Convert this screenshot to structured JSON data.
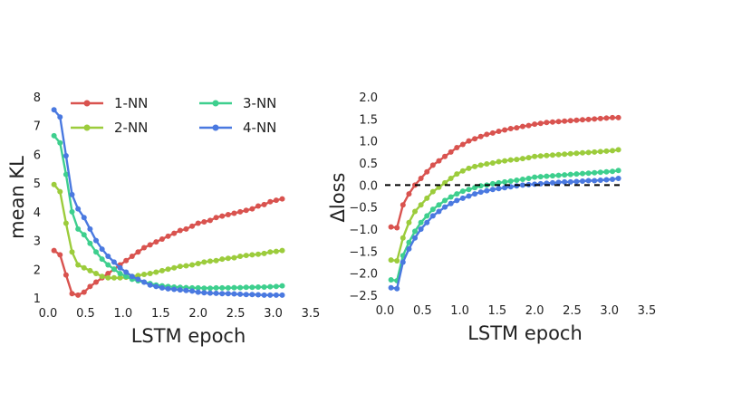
{
  "chart_data": [
    {
      "type": "line",
      "xlabel": "LSTM epoch",
      "ylabel": "mean KL",
      "xlim": [
        0.0,
        3.5
      ],
      "ylim": [
        1,
        8
      ],
      "xticks": [
        "0.0",
        "0.5",
        "1.0",
        "1.5",
        "2.0",
        "2.5",
        "3.0",
        "3.5"
      ],
      "yticks": [
        "1",
        "2",
        "3",
        "4",
        "5",
        "6",
        "7",
        "8"
      ],
      "grid": false,
      "legend": "top (2 columns)",
      "series": [
        {
          "name": "1-NN",
          "color": "#d9534f",
          "x": [
            0.08,
            0.16,
            0.24,
            0.32,
            0.4,
            0.48,
            0.56,
            0.64,
            0.72,
            0.8,
            0.88,
            0.96,
            1.04,
            1.12,
            1.2,
            1.28,
            1.36,
            1.44,
            1.52,
            1.6,
            1.68,
            1.76,
            1.84,
            1.92,
            2.0,
            2.08,
            2.16,
            2.24,
            2.32,
            2.4,
            2.48,
            2.56,
            2.64,
            2.72,
            2.8,
            2.88,
            2.96,
            3.04,
            3.12
          ],
          "values": [
            2.65,
            2.5,
            1.8,
            1.15,
            1.1,
            1.2,
            1.4,
            1.55,
            1.7,
            1.85,
            2.0,
            2.15,
            2.3,
            2.45,
            2.6,
            2.75,
            2.85,
            2.95,
            3.05,
            3.15,
            3.25,
            3.35,
            3.4,
            3.5,
            3.6,
            3.65,
            3.7,
            3.8,
            3.85,
            3.9,
            3.95,
            4.0,
            4.05,
            4.1,
            4.2,
            4.25,
            4.35,
            4.4,
            4.45
          ]
        },
        {
          "name": "2-NN",
          "color": "#9ccc3c",
          "x": [
            0.08,
            0.16,
            0.24,
            0.32,
            0.4,
            0.48,
            0.56,
            0.64,
            0.72,
            0.8,
            0.88,
            0.96,
            1.04,
            1.12,
            1.2,
            1.28,
            1.36,
            1.44,
            1.52,
            1.6,
            1.68,
            1.76,
            1.84,
            1.92,
            2.0,
            2.08,
            2.16,
            2.24,
            2.32,
            2.4,
            2.48,
            2.56,
            2.64,
            2.72,
            2.8,
            2.88,
            2.96,
            3.04,
            3.12
          ],
          "values": [
            4.95,
            4.7,
            3.6,
            2.6,
            2.15,
            2.05,
            1.95,
            1.85,
            1.75,
            1.7,
            1.7,
            1.7,
            1.72,
            1.75,
            1.78,
            1.82,
            1.85,
            1.9,
            1.95,
            2.0,
            2.05,
            2.1,
            2.12,
            2.15,
            2.2,
            2.25,
            2.28,
            2.3,
            2.35,
            2.38,
            2.4,
            2.45,
            2.48,
            2.5,
            2.52,
            2.55,
            2.6,
            2.62,
            2.65
          ]
        },
        {
          "name": "3-NN",
          "color": "#3ecf8e",
          "x": [
            0.08,
            0.16,
            0.24,
            0.32,
            0.4,
            0.48,
            0.56,
            0.64,
            0.72,
            0.8,
            0.88,
            0.96,
            1.04,
            1.12,
            1.2,
            1.28,
            1.36,
            1.44,
            1.52,
            1.6,
            1.68,
            1.76,
            1.84,
            1.92,
            2.0,
            2.08,
            2.16,
            2.24,
            2.32,
            2.4,
            2.48,
            2.56,
            2.64,
            2.72,
            2.8,
            2.88,
            2.96,
            3.04,
            3.12
          ],
          "values": [
            6.65,
            6.4,
            5.3,
            4.0,
            3.4,
            3.2,
            2.9,
            2.6,
            2.35,
            2.15,
            2.0,
            1.85,
            1.75,
            1.65,
            1.6,
            1.55,
            1.5,
            1.45,
            1.42,
            1.4,
            1.38,
            1.37,
            1.36,
            1.35,
            1.35,
            1.34,
            1.34,
            1.35,
            1.35,
            1.35,
            1.36,
            1.36,
            1.37,
            1.37,
            1.38,
            1.38,
            1.39,
            1.4,
            1.42
          ]
        },
        {
          "name": "4-NN",
          "color": "#4a79e0",
          "x": [
            0.08,
            0.16,
            0.24,
            0.32,
            0.4,
            0.48,
            0.56,
            0.64,
            0.72,
            0.8,
            0.88,
            0.96,
            1.04,
            1.12,
            1.2,
            1.28,
            1.36,
            1.44,
            1.52,
            1.6,
            1.68,
            1.76,
            1.84,
            1.92,
            2.0,
            2.08,
            2.16,
            2.24,
            2.32,
            2.4,
            2.48,
            2.56,
            2.64,
            2.72,
            2.8,
            2.88,
            2.96,
            3.04,
            3.12
          ],
          "values": [
            7.55,
            7.3,
            5.95,
            4.6,
            4.1,
            3.8,
            3.4,
            3.0,
            2.7,
            2.45,
            2.25,
            2.05,
            1.9,
            1.75,
            1.65,
            1.55,
            1.45,
            1.4,
            1.35,
            1.32,
            1.3,
            1.28,
            1.26,
            1.24,
            1.2,
            1.18,
            1.17,
            1.16,
            1.15,
            1.15,
            1.14,
            1.13,
            1.12,
            1.12,
            1.11,
            1.1,
            1.1,
            1.1,
            1.1
          ]
        }
      ]
    },
    {
      "type": "line",
      "xlabel": "LSTM epoch",
      "ylabel": "Δloss",
      "xlim": [
        0.0,
        3.5
      ],
      "ylim": [
        -2.5,
        2.0
      ],
      "xticks": [
        "0.0",
        "0.5",
        "1.0",
        "1.5",
        "2.0",
        "2.5",
        "3.0",
        "3.5"
      ],
      "yticks": [
        "−2.5",
        "−2.0",
        "−1.5",
        "−1.0",
        "−0.5",
        "0.0",
        "0.5",
        "1.0",
        "1.5",
        "2.0"
      ],
      "grid": false,
      "reference_line": {
        "y": 0.0,
        "style": "dashed",
        "color": "#000000"
      },
      "series": [
        {
          "name": "1-NN",
          "color": "#d9534f",
          "x": [
            0.08,
            0.16,
            0.24,
            0.32,
            0.4,
            0.48,
            0.56,
            0.64,
            0.72,
            0.8,
            0.88,
            0.96,
            1.04,
            1.12,
            1.2,
            1.28,
            1.36,
            1.44,
            1.52,
            1.6,
            1.68,
            1.76,
            1.84,
            1.92,
            2.0,
            2.08,
            2.16,
            2.24,
            2.32,
            2.4,
            2.48,
            2.56,
            2.64,
            2.72,
            2.8,
            2.88,
            2.96,
            3.04,
            3.12
          ],
          "values": [
            -0.95,
            -0.97,
            -0.45,
            -0.2,
            0.0,
            0.15,
            0.3,
            0.45,
            0.55,
            0.65,
            0.75,
            0.85,
            0.92,
            1.0,
            1.05,
            1.1,
            1.15,
            1.18,
            1.22,
            1.25,
            1.28,
            1.3,
            1.33,
            1.35,
            1.38,
            1.4,
            1.42,
            1.43,
            1.44,
            1.45,
            1.46,
            1.47,
            1.48,
            1.49,
            1.5,
            1.51,
            1.52,
            1.53,
            1.53
          ]
        },
        {
          "name": "2-NN",
          "color": "#9ccc3c",
          "x": [
            0.08,
            0.16,
            0.24,
            0.32,
            0.4,
            0.48,
            0.56,
            0.64,
            0.72,
            0.8,
            0.88,
            0.96,
            1.04,
            1.12,
            1.2,
            1.28,
            1.36,
            1.44,
            1.52,
            1.6,
            1.68,
            1.76,
            1.84,
            1.92,
            2.0,
            2.08,
            2.16,
            2.24,
            2.32,
            2.4,
            2.48,
            2.56,
            2.64,
            2.72,
            2.8,
            2.88,
            2.96,
            3.04,
            3.12
          ],
          "values": [
            -1.7,
            -1.72,
            -1.2,
            -0.85,
            -0.6,
            -0.45,
            -0.3,
            -0.15,
            -0.05,
            0.05,
            0.15,
            0.25,
            0.32,
            0.38,
            0.42,
            0.45,
            0.48,
            0.5,
            0.53,
            0.55,
            0.57,
            0.58,
            0.6,
            0.62,
            0.65,
            0.66,
            0.67,
            0.68,
            0.69,
            0.7,
            0.71,
            0.72,
            0.73,
            0.74,
            0.75,
            0.76,
            0.77,
            0.78,
            0.8
          ]
        },
        {
          "name": "3-NN",
          "color": "#3ecf8e",
          "x": [
            0.08,
            0.16,
            0.24,
            0.32,
            0.4,
            0.48,
            0.56,
            0.64,
            0.72,
            0.8,
            0.88,
            0.96,
            1.04,
            1.12,
            1.2,
            1.28,
            1.36,
            1.44,
            1.52,
            1.6,
            1.68,
            1.76,
            1.84,
            1.92,
            2.0,
            2.08,
            2.16,
            2.24,
            2.32,
            2.4,
            2.48,
            2.56,
            2.64,
            2.72,
            2.8,
            2.88,
            2.96,
            3.04,
            3.12
          ],
          "values": [
            -2.15,
            -2.17,
            -1.6,
            -1.3,
            -1.05,
            -0.85,
            -0.7,
            -0.55,
            -0.45,
            -0.35,
            -0.27,
            -0.2,
            -0.14,
            -0.1,
            -0.06,
            -0.02,
            0.0,
            0.03,
            0.05,
            0.07,
            0.09,
            0.11,
            0.13,
            0.15,
            0.18,
            0.19,
            0.2,
            0.21,
            0.22,
            0.23,
            0.24,
            0.25,
            0.26,
            0.27,
            0.28,
            0.29,
            0.3,
            0.31,
            0.33
          ]
        },
        {
          "name": "4-NN",
          "color": "#4a79e0",
          "x": [
            0.08,
            0.16,
            0.24,
            0.32,
            0.4,
            0.48,
            0.56,
            0.64,
            0.72,
            0.8,
            0.88,
            0.96,
            1.04,
            1.12,
            1.2,
            1.28,
            1.36,
            1.44,
            1.52,
            1.6,
            1.68,
            1.76,
            1.84,
            1.92,
            2.0,
            2.08,
            2.16,
            2.24,
            2.32,
            2.4,
            2.48,
            2.56,
            2.64,
            2.72,
            2.8,
            2.88,
            2.96,
            3.04,
            3.12
          ],
          "values": [
            -2.33,
            -2.35,
            -1.75,
            -1.45,
            -1.2,
            -1.0,
            -0.85,
            -0.7,
            -0.6,
            -0.5,
            -0.42,
            -0.35,
            -0.3,
            -0.25,
            -0.2,
            -0.16,
            -0.13,
            -0.1,
            -0.08,
            -0.06,
            -0.04,
            -0.02,
            0.0,
            0.01,
            0.02,
            0.03,
            0.04,
            0.05,
            0.06,
            0.07,
            0.07,
            0.08,
            0.09,
            0.1,
            0.1,
            0.11,
            0.12,
            0.13,
            0.15
          ]
        }
      ]
    }
  ]
}
